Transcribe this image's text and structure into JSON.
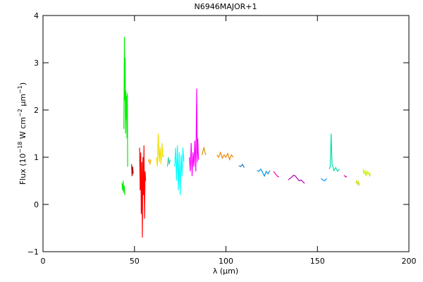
{
  "chart_data": {
    "type": "line",
    "title": "N6946MAJOR+1",
    "xlabel": "λ (μm)",
    "ylabel": [
      "Flux (10",
      "−18",
      " W cm",
      "−2",
      " μm",
      "−1",
      ")"
    ],
    "xlim": [
      0,
      200
    ],
    "xticks": [
      0,
      50,
      100,
      150,
      200
    ],
    "ylim": [
      -1,
      4
    ],
    "yticks": [
      {
        "value": -1,
        "label": "−1"
      },
      0,
      1,
      2,
      3,
      4
    ],
    "series": [
      {
        "color": "#00ee00",
        "x": [
          43.2,
          43.5,
          43.8,
          44.1,
          44.4,
          44.7
        ],
        "values": [
          0.45,
          0.3,
          0.5,
          0.25,
          0.4,
          0.2
        ]
      },
      {
        "color": "#00ee00",
        "x": [
          44.2,
          44.5,
          44.7,
          44.9,
          45.1,
          45.3,
          45.5,
          45.7,
          45.9,
          46.1,
          46.3
        ],
        "values": [
          1.6,
          3.55,
          2.2,
          3.1,
          1.5,
          2.4,
          1.8,
          2.3,
          1.4,
          2.35,
          0.8
        ]
      },
      {
        "color": "#b00000",
        "x": [
          48.4,
          48.7,
          49.0,
          49.3
        ],
        "values": [
          0.85,
          0.6,
          0.8,
          0.65
        ]
      },
      {
        "color": "#ff0000",
        "x": [
          52.8,
          53.1,
          53.4,
          53.7,
          54.0,
          54.3,
          54.6,
          54.9,
          55.2,
          55.5,
          55.8,
          56.1
        ],
        "values": [
          1.2,
          0.3,
          1.1,
          -0.2,
          0.9,
          -0.7,
          1.0,
          0.2,
          1.25,
          -0.3,
          0.7,
          0.5
        ]
      },
      {
        "color": "#ffaa00",
        "x": [
          57.5,
          58,
          58.5,
          59
        ],
        "values": [
          0.9,
          0.95,
          0.85,
          0.95
        ]
      },
      {
        "color": "#f0e000",
        "x": [
          62,
          62.5,
          63,
          63.5,
          64,
          64.5,
          65,
          65.5,
          66
        ],
        "values": [
          1.0,
          0.8,
          1.5,
          0.9,
          1.2,
          0.85,
          1.3,
          1.0,
          1.05
        ]
      },
      {
        "color": "#33ccaa",
        "x": [
          68,
          68.5,
          69,
          69.5
        ],
        "values": [
          0.8,
          1.0,
          0.85,
          0.95
        ]
      },
      {
        "color": "#00ffff",
        "x": [
          72,
          72.5,
          73,
          73.5,
          74,
          74.5,
          75,
          75.5,
          76,
          76.5,
          77
        ],
        "values": [
          0.8,
          1.2,
          0.5,
          1.25,
          0.3,
          1.1,
          0.2,
          1.05,
          0.6,
          1.2,
          0.9
        ]
      },
      {
        "color": "#ff00ff",
        "x": [
          80,
          80.5,
          81,
          81.5,
          82,
          82.5,
          83,
          83.5,
          84,
          84.3,
          84.6,
          85
        ],
        "values": [
          1.0,
          0.7,
          1.3,
          0.6,
          1.1,
          0.8,
          1.35,
          0.7,
          2.45,
          0.9,
          1.4,
          0.95
        ]
      },
      {
        "color": "#cc9900",
        "x": [
          87,
          87.5,
          88,
          88.5,
          89
        ],
        "values": [
          1.05,
          1.15,
          1.2,
          1.1,
          1.05
        ]
      },
      {
        "color": "#ee8800",
        "x": [
          95,
          96,
          97,
          98,
          99,
          100,
          101,
          102,
          103,
          104
        ],
        "values": [
          1.05,
          1.0,
          1.1,
          0.98,
          1.05,
          1.0,
          1.08,
          0.95,
          1.05,
          1.0
        ]
      },
      {
        "color": "#1177cc",
        "x": [
          107,
          108,
          109,
          110
        ],
        "values": [
          0.82,
          0.8,
          0.85,
          0.78
        ]
      },
      {
        "color": "#0099dd",
        "x": [
          117,
          118,
          119,
          120,
          121,
          122,
          123,
          124
        ],
        "values": [
          0.72,
          0.7,
          0.75,
          0.68,
          0.6,
          0.7,
          0.65,
          0.72
        ]
      },
      {
        "color": "#ff00aa",
        "x": [
          126,
          127,
          128,
          129
        ],
        "values": [
          0.7,
          0.65,
          0.6,
          0.58
        ]
      },
      {
        "color": "#aa00aa",
        "x": [
          134,
          135,
          136,
          137,
          138,
          139,
          140,
          141,
          142,
          143
        ],
        "values": [
          0.52,
          0.55,
          0.58,
          0.62,
          0.6,
          0.55,
          0.5,
          0.52,
          0.48,
          0.45
        ]
      },
      {
        "color": "#0099ff",
        "x": [
          152,
          153,
          154,
          155
        ],
        "values": [
          0.55,
          0.52,
          0.5,
          0.55
        ]
      },
      {
        "color": "#00ddaa",
        "x": [
          156.5,
          157,
          157.5,
          158,
          158.5,
          159,
          160,
          161,
          162
        ],
        "values": [
          0.75,
          0.8,
          1.5,
          0.85,
          0.8,
          0.72,
          0.78,
          0.7,
          0.75
        ]
      },
      {
        "color": "#ee00aa",
        "x": [
          164.5,
          165,
          165.5,
          166
        ],
        "values": [
          0.62,
          0.6,
          0.58,
          0.6
        ]
      },
      {
        "color": "#ccdd00",
        "x": [
          171,
          171.5,
          172,
          172.5,
          173
        ],
        "values": [
          0.45,
          0.5,
          0.42,
          0.48,
          0.4
        ]
      },
      {
        "color": "#ccee00",
        "x": [
          175,
          175.5,
          176,
          176.5,
          177,
          177.5,
          178,
          178.5,
          179
        ],
        "values": [
          0.75,
          0.65,
          0.72,
          0.6,
          0.7,
          0.65,
          0.68,
          0.6,
          0.66
        ]
      }
    ]
  }
}
